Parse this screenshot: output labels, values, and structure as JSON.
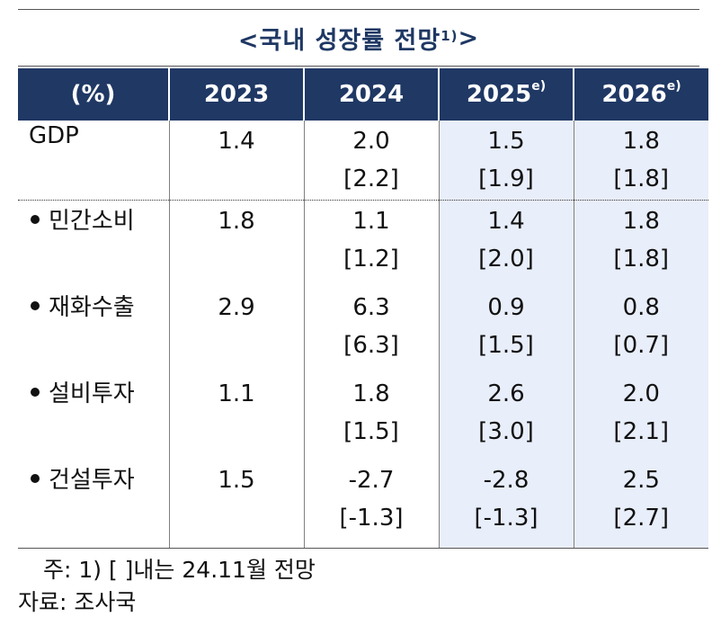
{
  "title": {
    "text": "<국내 성장률 전망",
    "sup": "1)",
    "tail": ">"
  },
  "header": {
    "unit": "(%)",
    "years": [
      {
        "label": "2023",
        "sup": ""
      },
      {
        "label": "2024",
        "sup": ""
      },
      {
        "label": "2025",
        "sup": "e)"
      },
      {
        "label": "2026",
        "sup": "e)"
      }
    ]
  },
  "rows": [
    {
      "label": "GDP",
      "bullet": false,
      "values": [
        "1.4",
        "2.0",
        "1.5",
        "1.8"
      ],
      "previous": [
        "",
        "[2.2]",
        "[1.9]",
        "[1.8]"
      ]
    },
    {
      "label": "민간소비",
      "bullet": true,
      "values": [
        "1.8",
        "1.1",
        "1.4",
        "1.8"
      ],
      "previous": [
        "",
        "[1.2]",
        "[2.0]",
        "[1.8]"
      ]
    },
    {
      "label": "재화수출",
      "bullet": true,
      "values": [
        "2.9",
        "6.3",
        "0.9",
        "0.8"
      ],
      "previous": [
        "",
        "[6.3]",
        "[1.5]",
        "[0.7]"
      ]
    },
    {
      "label": "설비투자",
      "bullet": true,
      "values": [
        "1.1",
        "1.8",
        "2.6",
        "2.0"
      ],
      "previous": [
        "",
        "[1.5]",
        "[3.0]",
        "[2.1]"
      ]
    },
    {
      "label": "건설투자",
      "bullet": true,
      "values": [
        "1.5",
        "-2.7",
        "-2.8",
        "2.5"
      ],
      "previous": [
        "",
        "[-1.3]",
        "[-1.3]",
        "[2.7]"
      ]
    }
  ],
  "notes": {
    "note": "주: 1) [ ]내는 24.11월 전망",
    "source": "자료: 조사국"
  },
  "colors": {
    "header_bg": "#1f3864",
    "projection_bg": "#e8eefa",
    "title": "#1f3864"
  }
}
